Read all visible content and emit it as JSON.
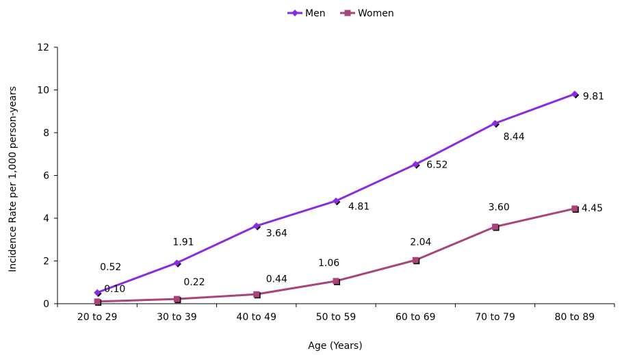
{
  "chart_data": {
    "type": "line",
    "title": "",
    "xlabel": "Age (Years)",
    "ylabel": "Incidence Rate per 1,000 person-years",
    "categories": [
      "20 to 29",
      "30 to 39",
      "40 to 49",
      "50 to 59",
      "60 to 69",
      "70 to 79",
      "80 to 89"
    ],
    "ylim": [
      0,
      12
    ],
    "yticks": [
      "0",
      "2",
      "4",
      "6",
      "8",
      "10",
      "12"
    ],
    "grid": false,
    "legend_position": "top-center",
    "series": [
      {
        "name": "Men",
        "color": "#8a2be2",
        "marker": "diamond",
        "values": [
          0.52,
          1.91,
          3.64,
          4.81,
          6.52,
          8.44,
          9.81
        ],
        "labels": [
          "0.52",
          "1.91",
          "3.64",
          "4.81",
          "6.52",
          "8.44",
          "9.81"
        ]
      },
      {
        "name": "Women",
        "color": "#a9447a",
        "marker": "square",
        "values": [
          0.1,
          0.22,
          0.44,
          1.06,
          2.04,
          3.6,
          4.45
        ],
        "labels": [
          "0.10",
          "0.22",
          "0.44",
          "1.06",
          "2.04",
          "3.60",
          "4.45"
        ]
      }
    ]
  }
}
